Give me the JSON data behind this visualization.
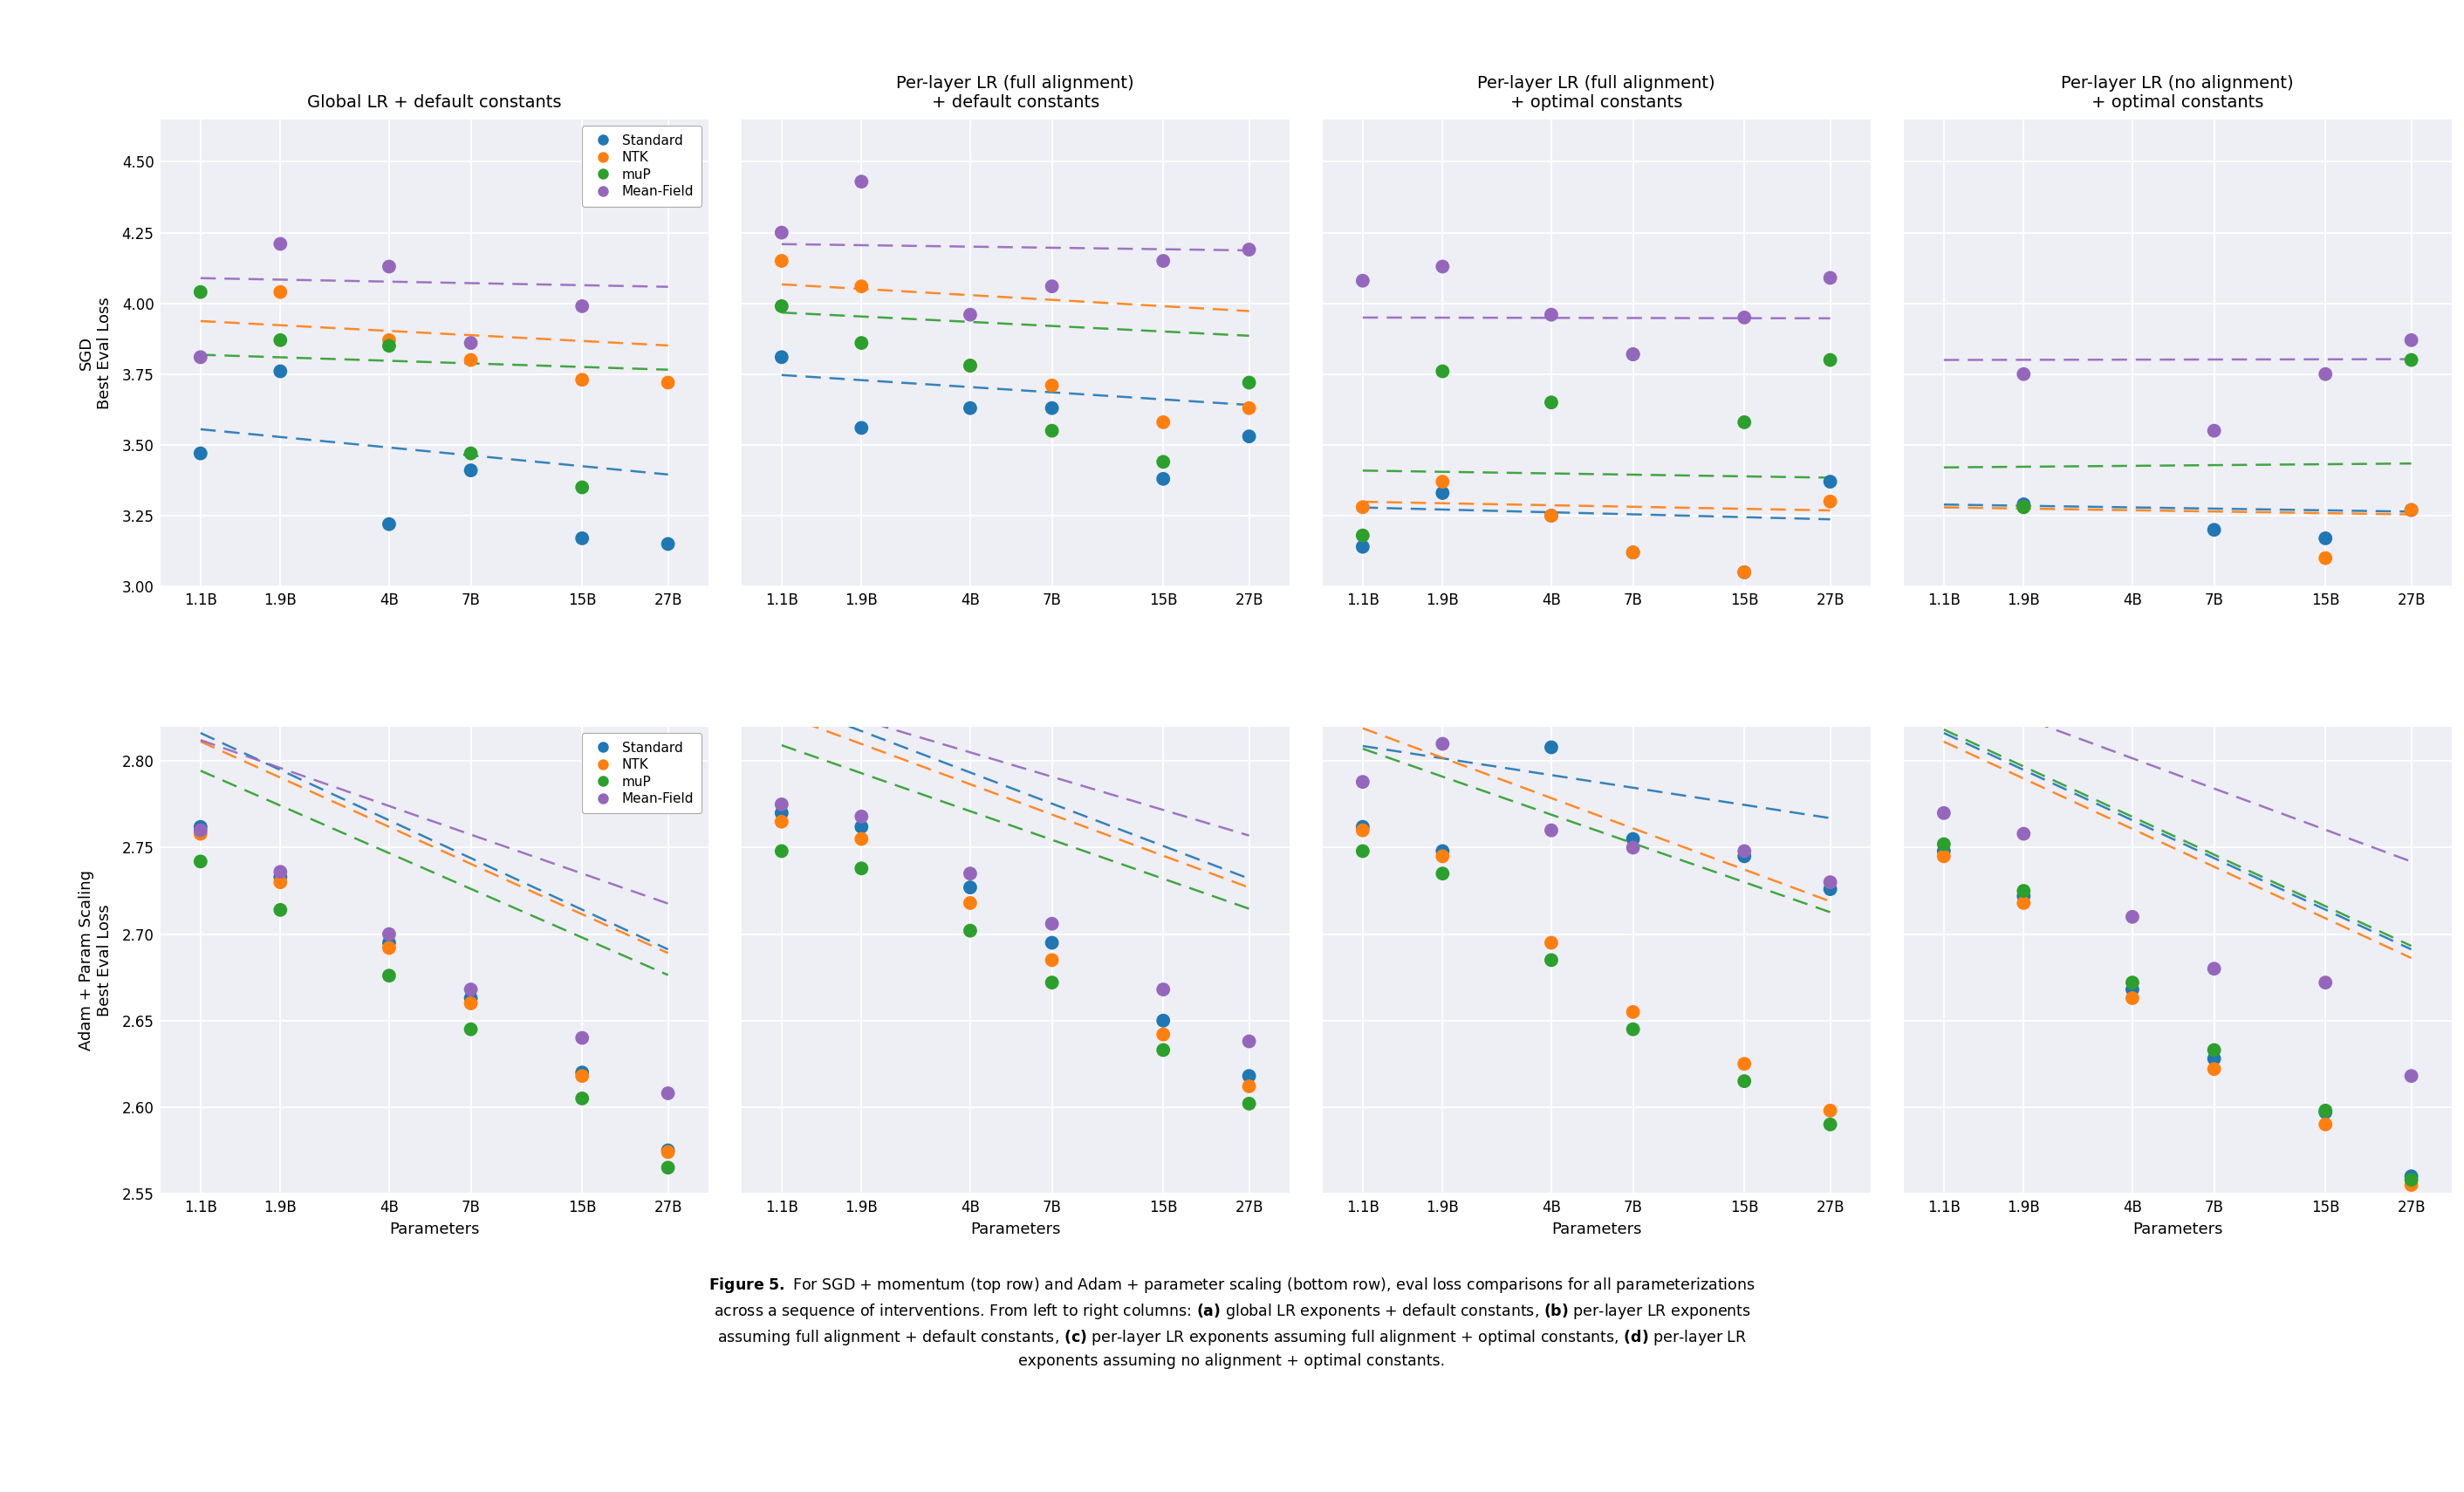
{
  "col_titles": [
    "Global LR + default constants",
    "Per-layer LR (full alignment)\n+ default constants",
    "Per-layer LR (full alignment)\n+ optimal constants",
    "Per-layer LR (no alignment)\n+ optimal constants"
  ],
  "x_labels": [
    "1.1B",
    "1.9B",
    "4B",
    "7B",
    "15B",
    "27B"
  ],
  "x_log": [
    1.1,
    1.9,
    4.0,
    7.0,
    15.0,
    27.0
  ],
  "colors": {
    "Standard": "#1f77b4",
    "NTK": "#ff7f0e",
    "muP": "#2ca02c",
    "Mean-Field": "#9467bd"
  },
  "series_names": [
    "Standard",
    "NTK",
    "muP",
    "Mean-Field"
  ],
  "sgd_data": [
    {
      "Standard": [
        3.47,
        3.76,
        3.22,
        3.41,
        3.17,
        3.15
      ],
      "NTK": [
        null,
        4.04,
        3.87,
        3.8,
        3.73,
        3.72
      ],
      "muP": [
        4.04,
        3.87,
        3.85,
        3.47,
        3.35,
        null
      ],
      "Mean-Field": [
        3.81,
        4.21,
        4.13,
        3.86,
        3.99,
        null
      ]
    },
    {
      "Standard": [
        3.81,
        3.56,
        3.63,
        3.63,
        3.38,
        3.53
      ],
      "NTK": [
        4.15,
        4.06,
        3.78,
        3.71,
        3.58,
        3.63
      ],
      "muP": [
        3.99,
        3.86,
        3.78,
        3.55,
        3.44,
        3.72
      ],
      "Mean-Field": [
        4.25,
        4.43,
        3.96,
        4.06,
        4.15,
        4.19
      ]
    },
    {
      "Standard": [
        3.14,
        3.33,
        3.25,
        3.12,
        3.05,
        3.37
      ],
      "NTK": [
        3.28,
        3.37,
        3.25,
        3.12,
        3.05,
        3.3
      ],
      "muP": [
        3.18,
        3.76,
        3.65,
        3.82,
        3.58,
        3.8
      ],
      "Mean-Field": [
        4.08,
        4.13,
        3.96,
        3.82,
        3.95,
        4.09
      ]
    },
    {
      "Standard": [
        null,
        3.29,
        null,
        3.2,
        3.17,
        3.27
      ],
      "NTK": [
        null,
        3.28,
        null,
        null,
        3.1,
        3.27
      ],
      "muP": [
        null,
        3.28,
        null,
        null,
        null,
        3.8
      ],
      "Mean-Field": [
        null,
        3.75,
        null,
        3.55,
        3.75,
        3.87
      ]
    }
  ],
  "sgd_trend_params": [
    {
      "Standard": {
        "a": 3.56,
        "b": -0.115
      },
      "NTK": {
        "a": 3.94,
        "b": -0.062
      },
      "muP": {
        "a": 3.82,
        "b": -0.038
      },
      "Mean-Field": {
        "a": 4.09,
        "b": -0.022
      }
    },
    {
      "Standard": {
        "a": 3.75,
        "b": -0.076
      },
      "NTK": {
        "a": 4.07,
        "b": -0.068
      },
      "muP": {
        "a": 3.97,
        "b": -0.059
      },
      "Mean-Field": {
        "a": 4.21,
        "b": -0.016
      }
    },
    {
      "Standard": {
        "a": 3.28,
        "b": -0.03
      },
      "NTK": {
        "a": 3.3,
        "b": -0.022
      },
      "muP": {
        "a": 3.41,
        "b": -0.018
      },
      "Mean-Field": {
        "a": 3.95,
        "b": -0.002
      }
    },
    {
      "Standard": {
        "a": 3.29,
        "b": -0.018
      },
      "NTK": {
        "a": 3.28,
        "b": -0.018
      },
      "muP": {
        "a": 3.42,
        "b": 0.01
      },
      "Mean-Field": {
        "a": 3.8,
        "b": 0.002
      }
    }
  ],
  "adam_data": [
    {
      "Standard": [
        2.762,
        2.733,
        2.695,
        2.663,
        2.62,
        2.575
      ],
      "NTK": [
        2.758,
        2.73,
        2.692,
        2.66,
        2.618,
        2.574
      ],
      "muP": [
        2.742,
        2.714,
        2.676,
        2.645,
        2.605,
        2.565
      ],
      "Mean-Field": [
        2.76,
        2.736,
        2.7,
        2.668,
        2.64,
        2.608
      ]
    },
    {
      "Standard": [
        2.77,
        2.762,
        2.727,
        2.695,
        2.65,
        2.618
      ],
      "NTK": [
        2.765,
        2.755,
        2.718,
        2.685,
        2.642,
        2.612
      ],
      "muP": [
        2.748,
        2.738,
        2.702,
        2.672,
        2.633,
        2.602
      ],
      "Mean-Field": [
        2.775,
        2.768,
        2.735,
        2.706,
        2.668,
        2.638
      ]
    },
    {
      "Standard": [
        2.762,
        2.748,
        2.808,
        2.755,
        2.745,
        2.726
      ],
      "NTK": [
        2.76,
        2.745,
        2.695,
        2.655,
        2.625,
        2.598
      ],
      "muP": [
        2.748,
        2.735,
        2.685,
        2.645,
        2.615,
        2.59
      ],
      "Mean-Field": [
        2.788,
        2.81,
        2.76,
        2.75,
        2.748,
        2.73
      ]
    },
    {
      "Standard": [
        2.748,
        2.722,
        2.668,
        2.628,
        2.597,
        2.56
      ],
      "NTK": [
        2.745,
        2.718,
        2.663,
        2.622,
        2.59,
        2.555
      ],
      "muP": [
        2.752,
        2.725,
        2.672,
        2.633,
        2.598,
        2.558
      ],
      "Mean-Field": [
        2.77,
        2.758,
        2.71,
        2.68,
        2.672,
        2.618
      ]
    }
  ],
  "adam_trend_params": [
    {
      "Standard": {
        "a": 2.82,
        "b": -0.09
      },
      "NTK": {
        "a": 2.815,
        "b": -0.088
      },
      "muP": {
        "a": 2.798,
        "b": -0.085
      },
      "Mean-Field": {
        "a": 2.815,
        "b": -0.068
      }
    },
    {
      "Standard": {
        "a": 2.838,
        "b": -0.074
      },
      "NTK": {
        "a": 2.83,
        "b": -0.072
      },
      "muP": {
        "a": 2.812,
        "b": -0.068
      },
      "Mean-Field": {
        "a": 2.84,
        "b": -0.058
      }
    },
    {
      "Standard": {
        "a": 2.81,
        "b": -0.03
      },
      "NTK": {
        "a": 2.822,
        "b": -0.072
      },
      "muP": {
        "a": 2.81,
        "b": -0.068
      },
      "Mean-Field": {
        "a": 2.9,
        "b": -0.052
      }
    },
    {
      "Standard": {
        "a": 2.82,
        "b": -0.09
      },
      "NTK": {
        "a": 2.815,
        "b": -0.09
      },
      "muP": {
        "a": 2.822,
        "b": -0.09
      },
      "Mean-Field": {
        "a": 2.845,
        "b": -0.072
      }
    }
  ],
  "sgd_ylim": [
    3.0,
    4.65
  ],
  "sgd_yticks": [
    3.0,
    3.25,
    3.5,
    3.75,
    4.0,
    4.25,
    4.5
  ],
  "adam_ylim": [
    2.55,
    2.82
  ],
  "adam_yticks": [
    2.55,
    2.6,
    2.65,
    2.7,
    2.75,
    2.8
  ],
  "xlabel": "Parameters",
  "ylabel_sgd": "SGD\nBest Eval Loss",
  "ylabel_adam": "Adam + Param Scaling\nBest Eval Loss",
  "caption_parts": [
    "Figure 5.",
    " For SGD + momentum (top row) and Adam + parameter scaling (bottom row), eval loss comparisons for all parameterizations\nacross a sequence of interventions. From left to right columns: ",
    "(a)",
    " global LR exponents + default constants, ",
    "(b)",
    " per-layer LR exponents\nassuming full alignment + default constants, ",
    "(c)",
    " per-layer LR exponents assuming full alignment + optimal constants, ",
    "(d)",
    " per-layer LR\nexponents assuming no alignment + optimal constants."
  ],
  "bg_color": "#eeeef5"
}
